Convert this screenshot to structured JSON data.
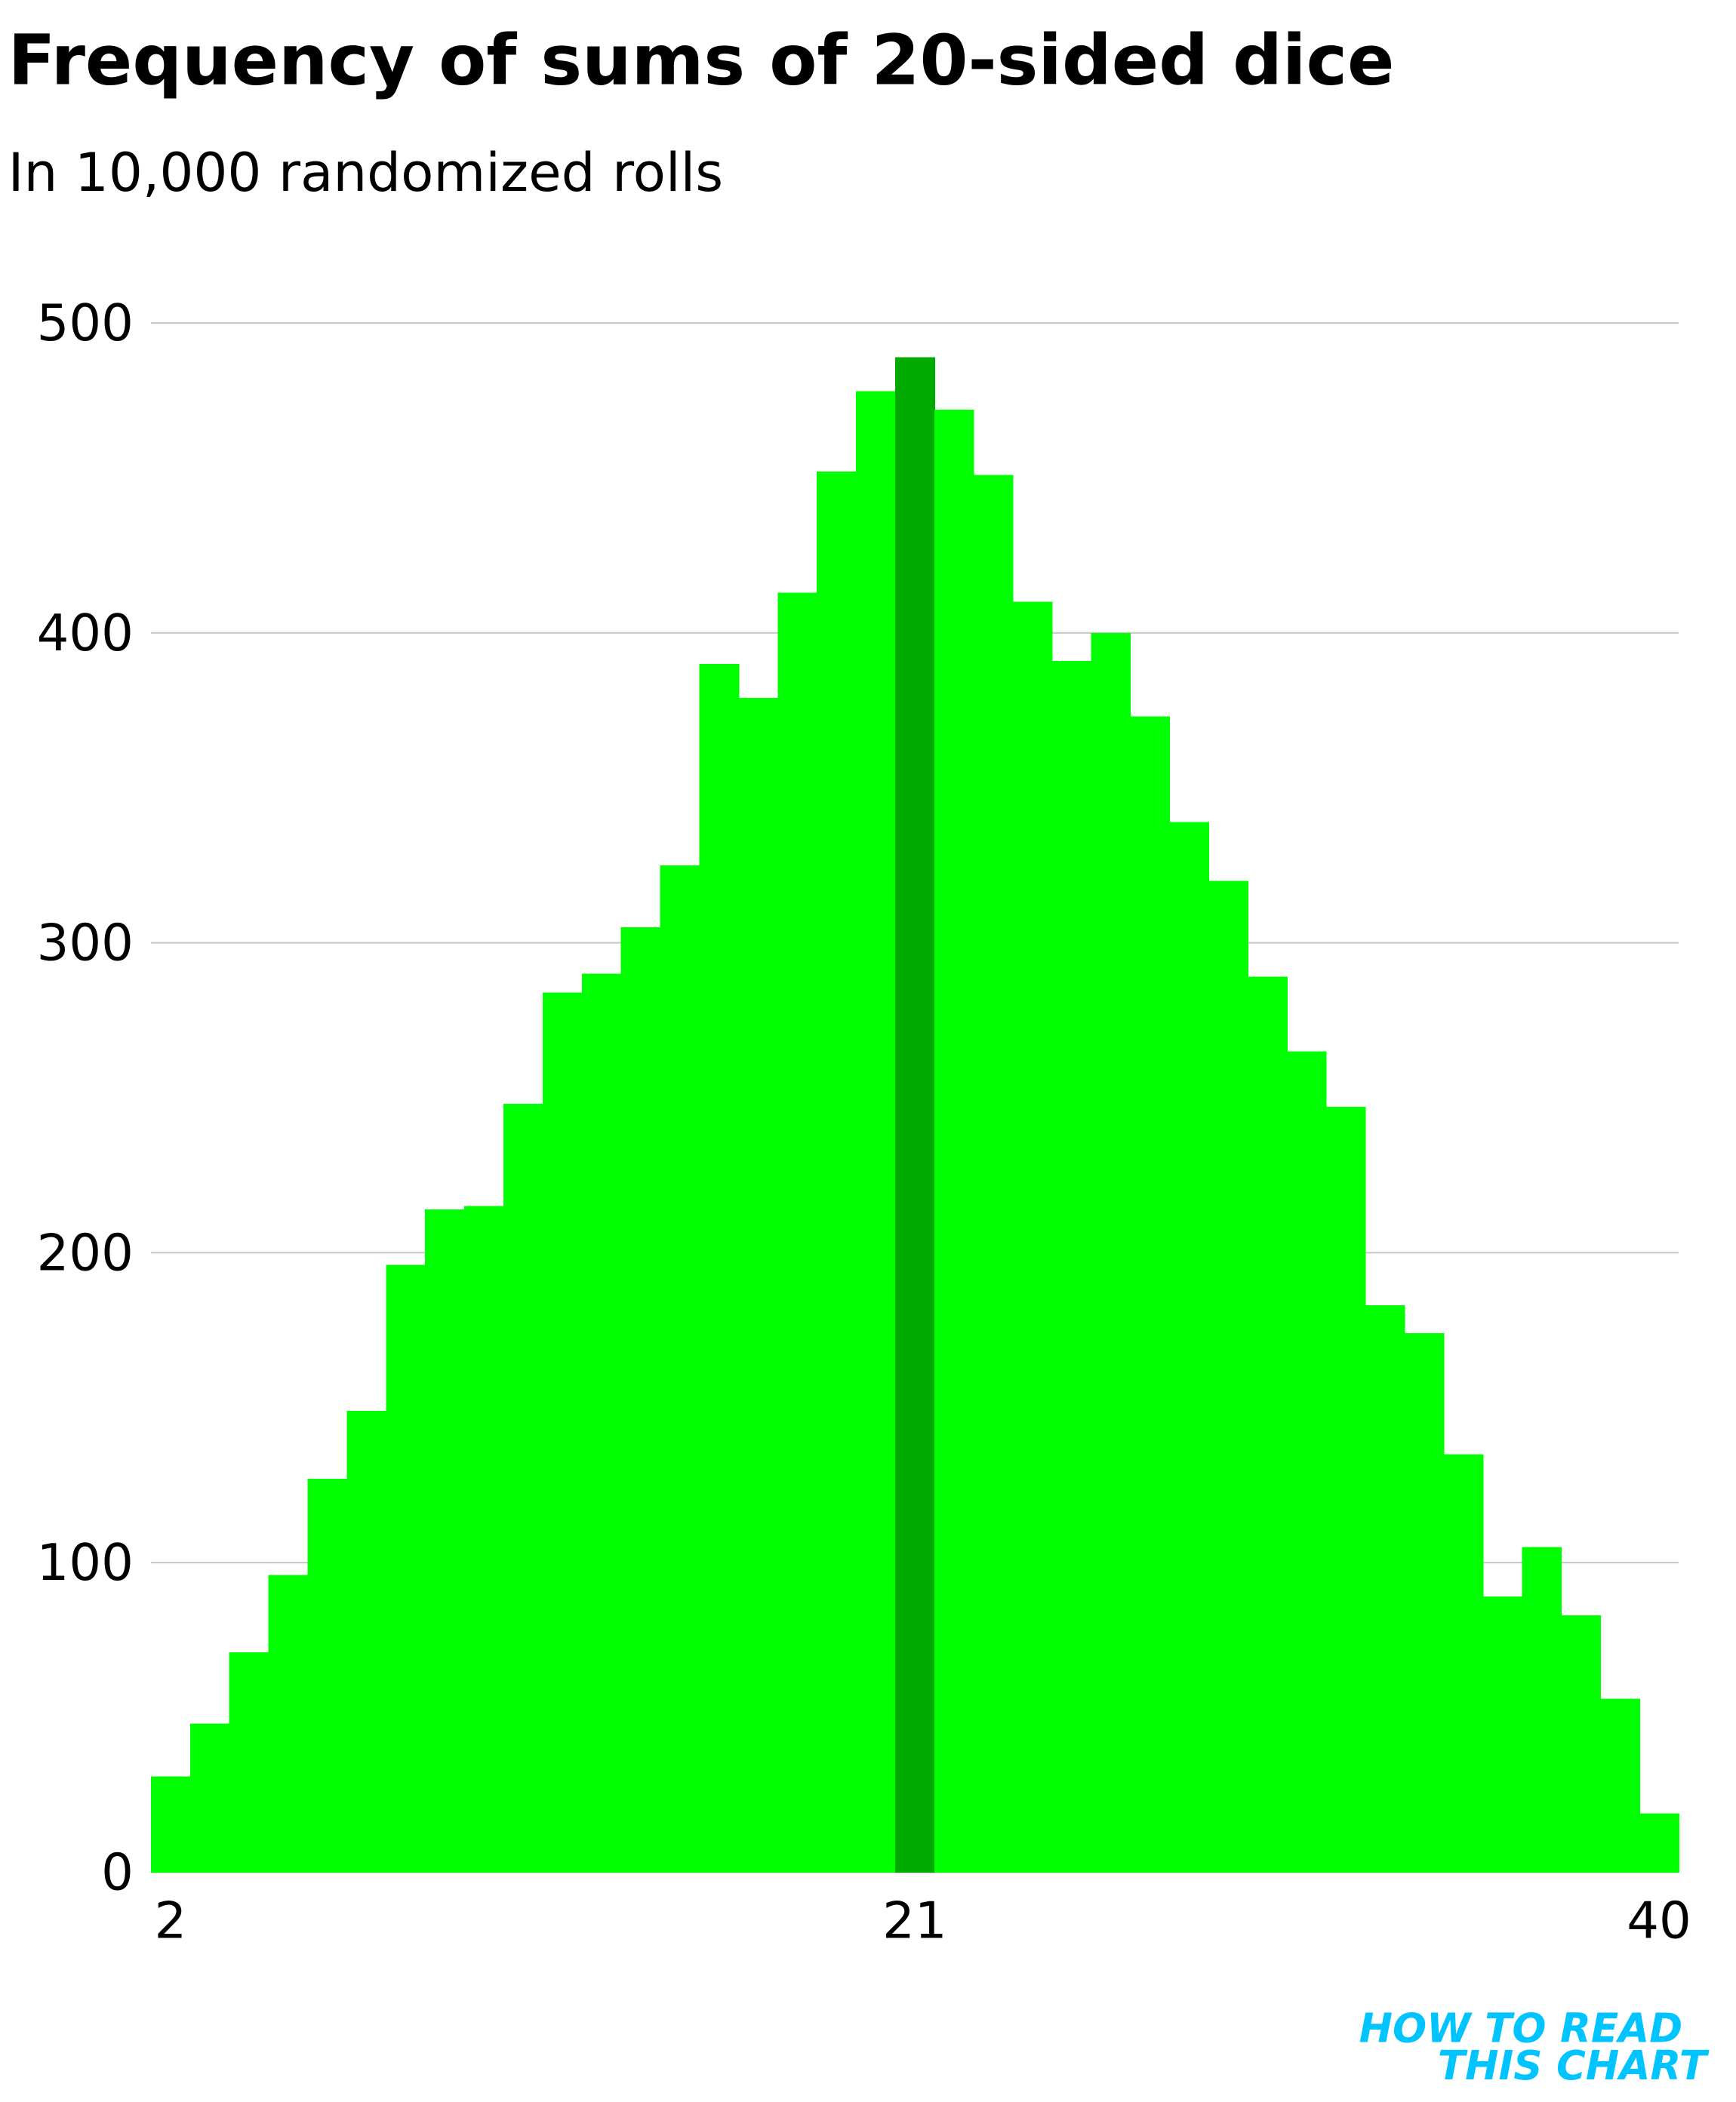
{
  "chart_data": {
    "type": "bar",
    "title": "Frequency of sums of 20-sided dice",
    "subtitle": "In 10,000 randomized rolls",
    "categories": [
      "2",
      null,
      null,
      null,
      null,
      null,
      null,
      null,
      null,
      null,
      null,
      null,
      null,
      null,
      null,
      null,
      null,
      null,
      null,
      "21",
      null,
      null,
      null,
      null,
      null,
      null,
      null,
      null,
      null,
      null,
      null,
      null,
      null,
      null,
      null,
      null,
      null,
      null,
      "40"
    ],
    "values": [
      31,
      48,
      71,
      96,
      127,
      149,
      196,
      214,
      215,
      248,
      284,
      290,
      305,
      325,
      390,
      379,
      413,
      452,
      478,
      489,
      472,
      451,
      410,
      391,
      400,
      373,
      339,
      320,
      289,
      265,
      247,
      183,
      174,
      135,
      89,
      105,
      83,
      56,
      19
    ],
    "colors": [
      "#00ff00",
      "#00ff00",
      "#00ff00",
      "#00ff00",
      "#00ff00",
      "#00ff00",
      "#00ff00",
      "#00ff00",
      "#00ff00",
      "#00ff00",
      "#00ff00",
      "#00ff00",
      "#00ff00",
      "#00ff00",
      "#00ff00",
      "#00ff00",
      "#00ff00",
      "#00ff00",
      "#00ff00",
      "#00aa00",
      "#00ff00",
      "#00ff00",
      "#00ff00",
      "#00ff00",
      "#00ff00",
      "#00ff00",
      "#00ff00",
      "#00ff00",
      "#00ff00",
      "#00ff00",
      "#00ff00",
      "#00ff00",
      "#00ff00",
      "#00ff00",
      "#00ff00",
      "#00ff00",
      "#00ff00",
      "#00ff00",
      "#00ff00"
    ],
    "ylim": [
      0,
      500
    ],
    "yticks": [
      0,
      100,
      200,
      300,
      400,
      500
    ],
    "grid": true,
    "footer": [
      "HOW TO READ",
      "THIS CHART"
    ]
  }
}
